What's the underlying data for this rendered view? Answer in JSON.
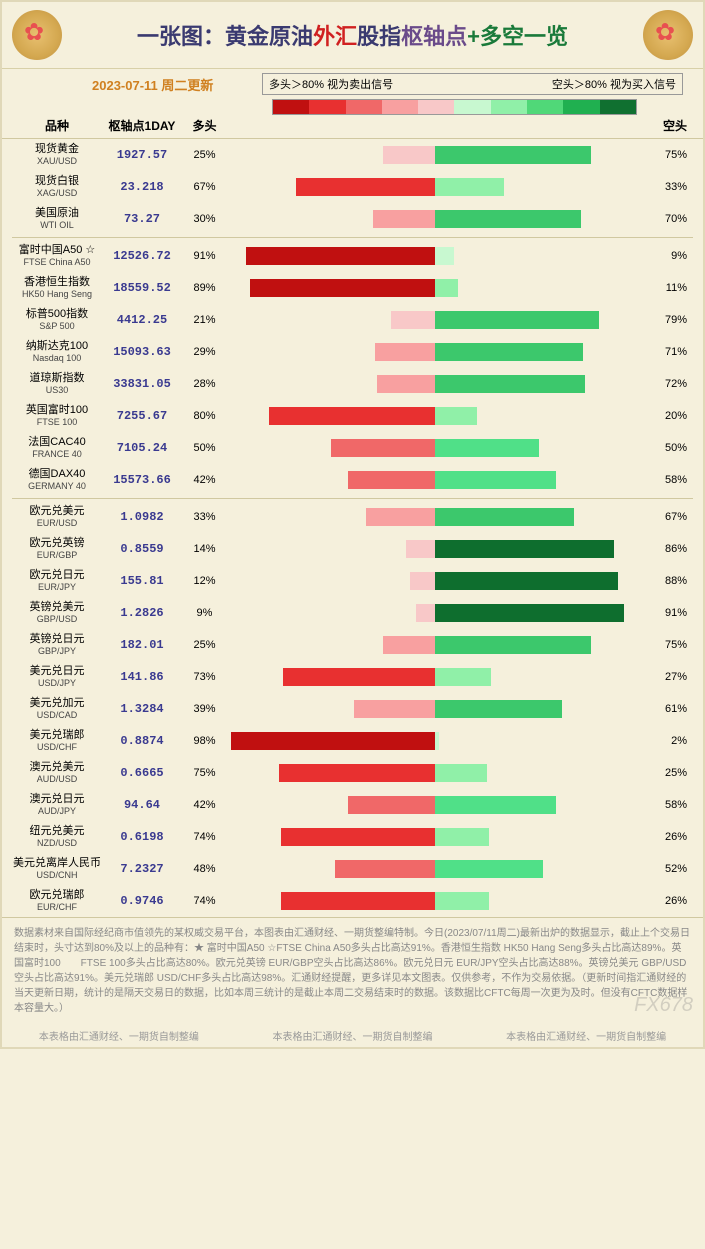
{
  "title": {
    "prefix": "一张图：",
    "p1": "黄金原油",
    "p2": "外汇",
    "p3": "股指",
    "p4": "枢轴点",
    "p5": "+多空一览"
  },
  "date": "2023-07-11 周二更新",
  "legend": {
    "long_label": "多头＞80% 视为卖出信号",
    "short_label": "空头＞80% 视为买入信号",
    "gradient": [
      "#c01010",
      "#e83030",
      "#f06868",
      "#f8a0a0",
      "#f8c8c8",
      "#c8f8d0",
      "#90f0a8",
      "#50d878",
      "#20b050",
      "#107030"
    ]
  },
  "columns": {
    "name": "品种",
    "pivot": "枢轴点1DAY",
    "long": "多头",
    "short": "空头"
  },
  "bar_half_width_pct": 50,
  "colors": {
    "red5": "#c01010",
    "red4": "#e83030",
    "red3": "#f06868",
    "red2": "#f8a0a0",
    "red1": "#f8c8c8",
    "green1": "#c8f8d0",
    "green2": "#90f0a8",
    "green3": "#3cc86c",
    "green4": "#20a850",
    "green5": "#0e6e2e"
  },
  "sections": [
    {
      "rows": [
        {
          "cn": "现货黄金",
          "en": "XAU/USD",
          "pivot": "1927.57",
          "long": 25,
          "short": 75,
          "lc": "#f8c8c8",
          "sc": "#3cc86c"
        },
        {
          "cn": "现货白银",
          "en": "XAG/USD",
          "pivot": "23.218",
          "long": 67,
          "short": 33,
          "lc": "#e83030",
          "sc": "#90f0a8"
        },
        {
          "cn": "美国原油",
          "en": "WTI OIL",
          "pivot": "73.27",
          "long": 30,
          "short": 70,
          "lc": "#f8a0a0",
          "sc": "#3cc86c"
        }
      ]
    },
    {
      "rows": [
        {
          "cn": "富时中国A50 ☆",
          "en": "FTSE China A50",
          "pivot": "12526.72",
          "long": 91,
          "short": 9,
          "lc": "#c01010",
          "sc": "#c8f8d0"
        },
        {
          "cn": "香港恒生指数",
          "en": "HK50 Hang Seng",
          "pivot": "18559.52",
          "long": 89,
          "short": 11,
          "lc": "#c01010",
          "sc": "#90f0a8"
        },
        {
          "cn": "标普500指数",
          "en": "S&P 500",
          "pivot": "4412.25",
          "long": 21,
          "short": 79,
          "lc": "#f8c8c8",
          "sc": "#3cc86c"
        },
        {
          "cn": "纳斯达克100",
          "en": "Nasdaq 100",
          "pivot": "15093.63",
          "long": 29,
          "short": 71,
          "lc": "#f8a0a0",
          "sc": "#3cc86c"
        },
        {
          "cn": "道琼斯指数",
          "en": "US30",
          "pivot": "33831.05",
          "long": 28,
          "short": 72,
          "lc": "#f8a0a0",
          "sc": "#3cc86c"
        },
        {
          "cn": "英国富时100",
          "en": "FTSE 100",
          "pivot": "7255.67",
          "long": 80,
          "short": 20,
          "lc": "#e83030",
          "sc": "#90f0a8"
        },
        {
          "cn": "法国CAC40",
          "en": "FRANCE 40",
          "pivot": "7105.24",
          "long": 50,
          "short": 50,
          "lc": "#f06868",
          "sc": "#50e088"
        },
        {
          "cn": "德国DAX40",
          "en": "GERMANY 40",
          "pivot": "15573.66",
          "long": 42,
          "short": 58,
          "lc": "#f06868",
          "sc": "#50e088"
        }
      ]
    },
    {
      "rows": [
        {
          "cn": "欧元兑美元",
          "en": "EUR/USD",
          "pivot": "1.0982",
          "long": 33,
          "short": 67,
          "lc": "#f8a0a0",
          "sc": "#3cc86c"
        },
        {
          "cn": "欧元兑英镑",
          "en": "EUR/GBP",
          "pivot": "0.8559",
          "long": 14,
          "short": 86,
          "lc": "#f8c8c8",
          "sc": "#0e6e2e"
        },
        {
          "cn": "欧元兑日元",
          "en": "EUR/JPY",
          "pivot": "155.81",
          "long": 12,
          "short": 88,
          "lc": "#f8c8c8",
          "sc": "#0e6e2e"
        },
        {
          "cn": "英镑兑美元",
          "en": "GBP/USD",
          "pivot": "1.2826",
          "long": 9,
          "short": 91,
          "lc": "#f8c8c8",
          "sc": "#0e6e2e"
        },
        {
          "cn": "英镑兑日元",
          "en": "GBP/JPY",
          "pivot": "182.01",
          "long": 25,
          "short": 75,
          "lc": "#f8a0a0",
          "sc": "#3cc86c"
        },
        {
          "cn": "美元兑日元",
          "en": "USD/JPY",
          "pivot": "141.86",
          "long": 73,
          "short": 27,
          "lc": "#e83030",
          "sc": "#90f0a8"
        },
        {
          "cn": "美元兑加元",
          "en": "USD/CAD",
          "pivot": "1.3284",
          "long": 39,
          "short": 61,
          "lc": "#f8a0a0",
          "sc": "#3cc86c"
        },
        {
          "cn": "美元兑瑞郎",
          "en": "USD/CHF",
          "pivot": "0.8874",
          "long": 98,
          "short": 2,
          "lc": "#c01010",
          "sc": "#c8f8d0"
        },
        {
          "cn": "澳元兑美元",
          "en": "AUD/USD",
          "pivot": "0.6665",
          "long": 75,
          "short": 25,
          "lc": "#e83030",
          "sc": "#90f0a8"
        },
        {
          "cn": "澳元兑日元",
          "en": "AUD/JPY",
          "pivot": "94.64",
          "long": 42,
          "short": 58,
          "lc": "#f06868",
          "sc": "#50e088"
        },
        {
          "cn": "纽元兑美元",
          "en": "NZD/USD",
          "pivot": "0.6198",
          "long": 74,
          "short": 26,
          "lc": "#e83030",
          "sc": "#90f0a8"
        },
        {
          "cn": "美元兑离岸人民币",
          "en": "USD/CNH",
          "pivot": "7.2327",
          "long": 48,
          "short": 52,
          "lc": "#f06868",
          "sc": "#50e088"
        },
        {
          "cn": "欧元兑瑞郎",
          "en": "EUR/CHF",
          "pivot": "0.9746",
          "long": 74,
          "short": 26,
          "lc": "#e83030",
          "sc": "#90f0a8"
        }
      ]
    }
  ],
  "footer": "数据素材来自国际经纪商市值领先的某权威交易平台，本图表由汇通财经、一期货整编特制。今日(2023/07/11周二)最新出炉的数据显示，截止上个交易日结束时，头寸达到80%及以上的品种有：★ 富时中国A50 ☆FTSE China A50多头占比高达91%。香港恒生指数 HK50 Hang Seng多头占比高达89%。英国富时100　　FTSE 100多头占比高达80%。欧元兑英镑 EUR/GBP空头占比高达86%。欧元兑日元 EUR/JPY空头占比高达88%。英镑兑美元 GBP/USD空头占比高达91%。美元兑瑞郎 USD/CHF多头占比高达98%。汇通财经提醒，更多详见本文图表。仅供参考，不作为交易依据。（更新时间指汇通财经的当天更新日期，统计的是隔天交易日的数据，比如本周三统计的是截止本周二交易结束时的数据。该数据比CFTC每周一次更为及时。但没有CFTC数据样本容量大。）",
  "credit": "本表格由汇通财经、一期货自制整编",
  "watermark": "FX678"
}
